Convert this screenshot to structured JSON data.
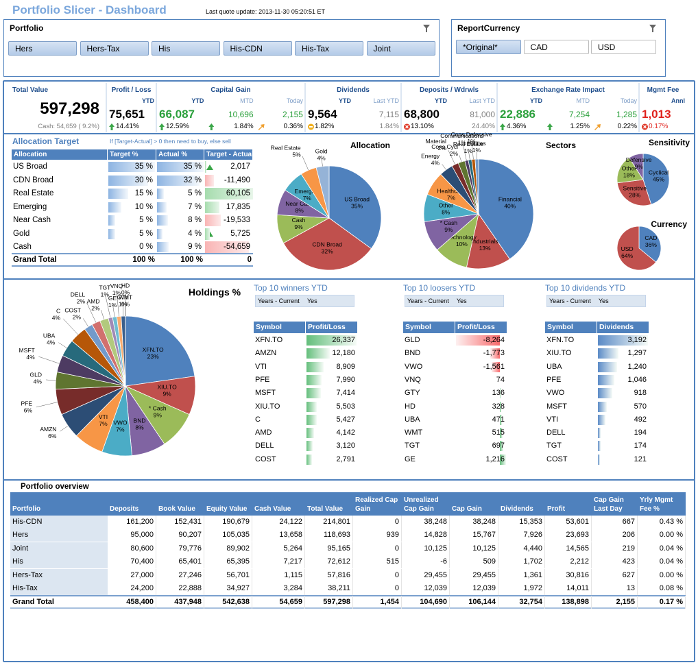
{
  "header": {
    "title": "Portfolio Slicer - Dashboard",
    "last_update": "Last quote update: 2013-11-30 05:20:51 ET"
  },
  "slicers": [
    {
      "title": "Portfolio",
      "items": [
        "Hers",
        "Hers-Tax",
        "His",
        "His-CDN",
        "His-Tax",
        "Joint"
      ]
    },
    {
      "title": "ReportCurrency",
      "items": [
        "*Original*",
        "CAD",
        "USD"
      ],
      "selected_index": 0
    }
  ],
  "kpis": [
    {
      "title": "Total Value",
      "value": "597,298",
      "note": "Cash: 54,659 ( 9.2%)"
    },
    {
      "title": "Profit / Loss",
      "items": [
        {
          "period": "YTD",
          "value": "75,651",
          "pct": "14.41%",
          "icon": "up",
          "color": "#000000"
        }
      ]
    },
    {
      "title": "Capital Gain",
      "items": [
        {
          "period": "YTD",
          "value": "66,087",
          "pct": "12.59%",
          "icon": "up",
          "color": "#2ba03c"
        },
        {
          "period": "MTD",
          "value": "10,696",
          "pct": "1.84%",
          "icon": "up",
          "color": "#2ba03c"
        },
        {
          "period": "Today",
          "value": "2,155",
          "pct": "0.36%",
          "icon": "flat",
          "color": "#2ba03c"
        }
      ]
    },
    {
      "title": "Dividends",
      "items": [
        {
          "period": "YTD",
          "value": "9,564",
          "pct": "1.82%",
          "icon": "neutral",
          "color": "#000000"
        },
        {
          "period": "Last YTD",
          "value": "7,115",
          "pct": "1.84%",
          "icon": "none",
          "color": "#808080"
        }
      ]
    },
    {
      "title": "Deposits / Wdrwls",
      "items": [
        {
          "period": "YTD",
          "value": "68,800",
          "pct": "13.10%",
          "icon": "down",
          "color": "#000000"
        },
        {
          "period": "Last YTD",
          "value": "81,000",
          "pct": "24.40%",
          "icon": "none",
          "color": "#808080"
        }
      ]
    },
    {
      "title": "Exchange Rate Impact",
      "items": [
        {
          "period": "YTD",
          "value": "22,886",
          "pct": "4.36%",
          "icon": "up",
          "color": "#2ba03c"
        },
        {
          "period": "MTD",
          "value": "7,254",
          "pct": "1.25%",
          "icon": "up",
          "color": "#2ba03c"
        },
        {
          "period": "Today",
          "value": "1,285",
          "pct": "0.22%",
          "icon": "flat",
          "color": "#2ba03c"
        }
      ]
    },
    {
      "title": "Mgmt Fee",
      "items": [
        {
          "period": "Annl",
          "value": "1,013",
          "pct": "0.17%",
          "icon": "down",
          "color": "#e0201b"
        }
      ]
    }
  ],
  "allocation_target": {
    "title": "Allocation Target",
    "note": "If [Target-Actual] > 0 then need to buy, else sell",
    "columns": [
      "Allocation",
      "Target %",
      "Actual %",
      "Target - Actual"
    ],
    "rows": [
      {
        "allocation": "US Broad",
        "target": {
          "value": 35,
          "label": "35 %"
        },
        "actual": {
          "value": 35,
          "label": "35 %"
        },
        "diff": {
          "value": 2017,
          "label": "2,017"
        }
      },
      {
        "allocation": "CDN Broad",
        "target": {
          "value": 30,
          "label": "30 %"
        },
        "actual": {
          "value": 32,
          "label": "32 %"
        },
        "diff": {
          "value": -11490,
          "label": "-11,490"
        }
      },
      {
        "allocation": "Real Estate",
        "target": {
          "value": 15,
          "label": "15 %"
        },
        "actual": {
          "value": 5,
          "label": "5 %"
        },
        "diff": {
          "value": 60105,
          "label": "60,105"
        }
      },
      {
        "allocation": "Emerging",
        "target": {
          "value": 10,
          "label": "10 %"
        },
        "actual": {
          "value": 7,
          "label": "7 %"
        },
        "diff": {
          "value": 17835,
          "label": "17,835"
        }
      },
      {
        "allocation": "Near Cash",
        "target": {
          "value": 5,
          "label": "5 %"
        },
        "actual": {
          "value": 8,
          "label": "8 %"
        },
        "diff": {
          "value": -19533,
          "label": "-19,533"
        }
      },
      {
        "allocation": "Gold",
        "target": {
          "value": 5,
          "label": "5 %"
        },
        "actual": {
          "value": 4,
          "label": "4 %"
        },
        "diff": {
          "value": 5725,
          "label": "5,725"
        }
      },
      {
        "allocation": "Cash",
        "target": {
          "value": 0,
          "label": "0 %"
        },
        "actual": {
          "value": 9,
          "label": "9 %"
        },
        "diff": {
          "value": -54659,
          "label": "-54,659"
        }
      }
    ],
    "total": [
      "Grand Total",
      "100 %",
      "100 %",
      "0"
    ]
  },
  "chart_data": [
    {
      "type": "pie",
      "title": "Allocation",
      "categories": [
        "US Broad",
        "CDN Broad",
        "Cash",
        "Near Cash",
        "Emerging",
        "Real Estate",
        "Gold"
      ],
      "values": [
        35,
        32,
        9,
        8,
        7,
        5,
        4
      ],
      "value_labels": [
        "35%",
        "32%",
        "9%",
        "8%",
        "7%",
        "5%",
        "4%"
      ],
      "colors": [
        "#4f81bd",
        "#c0504d",
        "#9bbb59",
        "#8064a2",
        "#4bacc6",
        "#f79646",
        "#95b3d7"
      ]
    },
    {
      "type": "pie",
      "title": "Sectors",
      "categories": [
        "Financial",
        "Industrials",
        "Technology",
        "* Cash",
        "Other",
        "Healthcare",
        "Energy",
        "Material",
        "Cons.Cycl",
        "Communications",
        "Real Estate",
        "Cons.Defensive",
        "Utilities"
      ],
      "values": [
        40,
        13,
        10,
        9,
        8,
        7,
        4,
        2,
        2,
        1,
        1,
        1,
        1
      ],
      "value_labels": [
        "40%",
        "13%",
        "10%",
        "9%",
        "8%",
        "7%",
        "4%",
        "2%",
        "2%",
        "1%",
        "1%",
        "1%",
        "1%"
      ],
      "colors": [
        "#4f81bd",
        "#c0504d",
        "#9bbb59",
        "#8064a2",
        "#4bacc6",
        "#f79646",
        "#2c4d75",
        "#772c2a",
        "#5f7530",
        "#4d3b62",
        "#276a7c",
        "#b65708",
        "#729aca"
      ]
    },
    {
      "type": "pie",
      "title": "Sensitivity",
      "categories": [
        "Cyclical",
        "Sensitive",
        "Other",
        "Defensive"
      ],
      "values": [
        45,
        28,
        18,
        9
      ],
      "value_labels": [
        "45%",
        "28%",
        "18%",
        "9%"
      ],
      "colors": [
        "#4f81bd",
        "#c0504d",
        "#9bbb59",
        "#8064a2"
      ]
    },
    {
      "type": "pie",
      "title": "Currency",
      "categories": [
        "CAD",
        "USD"
      ],
      "values": [
        36,
        64
      ],
      "value_labels": [
        "36%",
        "64%"
      ],
      "colors": [
        "#4f81bd",
        "#c0504d"
      ]
    },
    {
      "type": "pie",
      "title": "Holdings %",
      "categories": [
        "XFN.TO",
        "XIU.TO",
        "* Cash",
        "BND",
        "VWO",
        "VTI",
        "AMZN",
        "PFE",
        "GLD",
        "MSFT",
        "UBA",
        "C",
        "COST",
        "DELL",
        "AMD",
        "TGT",
        "GE",
        "VNQ",
        "GTY",
        "HD",
        "WMT"
      ],
      "values": [
        23,
        9,
        9,
        8,
        7,
        7,
        6,
        6,
        4,
        4,
        4,
        4,
        2,
        2,
        2,
        1,
        1,
        1,
        1,
        0,
        0
      ],
      "value_labels": [
        "23%",
        "9%",
        "9%",
        "8%",
        "7%",
        "7%",
        "6%",
        "6%",
        "4%",
        "4%",
        "4%",
        "4%",
        "2%",
        "2%",
        "2%",
        "1%",
        "1%",
        "1%",
        "1%",
        "0%",
        "0%"
      ],
      "colors": [
        "#4f81bd",
        "#c0504d",
        "#9bbb59",
        "#8064a2",
        "#4bacc6",
        "#f79646",
        "#2c4d75",
        "#772c2a",
        "#5f7530",
        "#4d3b62",
        "#276a7c",
        "#b65708",
        "#729aca",
        "#d1706e",
        "#b2c97d",
        "#a08ab6",
        "#6fbdd1",
        "#f9ac6d",
        "#3a5f8c",
        "#8f3a37",
        "#7a9a40"
      ]
    }
  ],
  "top10": [
    {
      "title": "Top 10 winners YTD",
      "filter_field": "Years - Current",
      "filter_value": "Yes",
      "columns": [
        "Symbol",
        "Profit/Loss"
      ],
      "symbols": [
        "XFN.TO",
        "AMZN",
        "VTI",
        "PFE",
        "MSFT",
        "XIU.TO",
        "C",
        "AMD",
        "DELL",
        "COST"
      ],
      "values": [
        26337,
        12180,
        8909,
        7990,
        7414,
        5503,
        5427,
        4142,
        3120,
        2791
      ],
      "value_labels": [
        "26,337",
        "12,180",
        "8,909",
        "7,990",
        "7,414",
        "5,503",
        "5,427",
        "4,142",
        "3,120",
        "2,791"
      ],
      "color": "#63be7b"
    },
    {
      "title": "Top 10 loosers YTD",
      "filter_field": "Years - Current",
      "filter_value": "Yes",
      "columns": [
        "Symbol",
        "Profit/Loss"
      ],
      "symbols": [
        "GLD",
        "BND",
        "VWO",
        "VNQ",
        "GTY",
        "HD",
        "UBA",
        "WMT",
        "TGT",
        "GE"
      ],
      "values": [
        -8264,
        -1773,
        -1561,
        74,
        136,
        328,
        471,
        515,
        697,
        1216
      ],
      "value_labels": [
        "-8,264",
        "-1,773",
        "-1,561",
        "74",
        "136",
        "328",
        "471",
        "515",
        "697",
        "1,216"
      ],
      "color": "#63be7b"
    },
    {
      "title": "Top 10 dividends YTD",
      "filter_field": "Years - Current",
      "filter_value": "Yes",
      "columns": [
        "Symbol",
        "Dividends"
      ],
      "symbols": [
        "XFN.TO",
        "XIU.TO",
        "UBA",
        "PFE",
        "VWO",
        "MSFT",
        "VTI",
        "DELL",
        "TGT",
        "COST"
      ],
      "values": [
        3192,
        1297,
        1240,
        1046,
        918,
        570,
        492,
        194,
        174,
        121
      ],
      "value_labels": [
        "3,192",
        "1,297",
        "1,240",
        "1,046",
        "918",
        "570",
        "492",
        "194",
        "174",
        "121"
      ],
      "color": "#5a8ac6"
    }
  ],
  "overview": {
    "title": "Portfolio overview",
    "columns": [
      "Portfolio",
      "Deposits",
      "Book Value",
      "Equity Value",
      "Cash Value",
      "Total Value",
      "Realized Cap Gain",
      "Unrealized Cap Gain",
      "Cap Gain",
      "Dividends",
      "Profit",
      "Cap Gain Last Day",
      "Yrly Mgmt Fee %"
    ],
    "rows": [
      [
        "His-CDN",
        "161,200",
        "152,431",
        "190,679",
        "24,122",
        "214,801",
        "0",
        "38,248",
        "38,248",
        "15,353",
        "53,601",
        "667",
        "0.43 %"
      ],
      [
        "Hers",
        "95,000",
        "90,207",
        "105,035",
        "13,658",
        "118,693",
        "939",
        "14,828",
        "15,767",
        "7,926",
        "23,693",
        "206",
        "0.00 %"
      ],
      [
        "Joint",
        "80,600",
        "79,776",
        "89,902",
        "5,264",
        "95,165",
        "0",
        "10,125",
        "10,125",
        "4,440",
        "14,565",
        "219",
        "0.04 %"
      ],
      [
        "His",
        "70,400",
        "65,401",
        "65,395",
        "7,217",
        "72,612",
        "515",
        "-6",
        "509",
        "1,702",
        "2,212",
        "423",
        "0.04 %"
      ],
      [
        "Hers-Tax",
        "27,000",
        "27,246",
        "56,701",
        "1,115",
        "57,816",
        "0",
        "29,455",
        "29,455",
        "1,361",
        "30,816",
        "627",
        "0.00 %"
      ],
      [
        "His-Tax",
        "24,200",
        "22,888",
        "34,927",
        "3,284",
        "38,211",
        "0",
        "12,039",
        "12,039",
        "1,972",
        "14,011",
        "13",
        "0.08 %"
      ]
    ],
    "total": [
      "Grand Total",
      "458,400",
      "437,948",
      "542,638",
      "54,659",
      "597,298",
      "1,454",
      "104,690",
      "106,144",
      "32,754",
      "138,898",
      "2,155",
      "0.17 %"
    ]
  }
}
